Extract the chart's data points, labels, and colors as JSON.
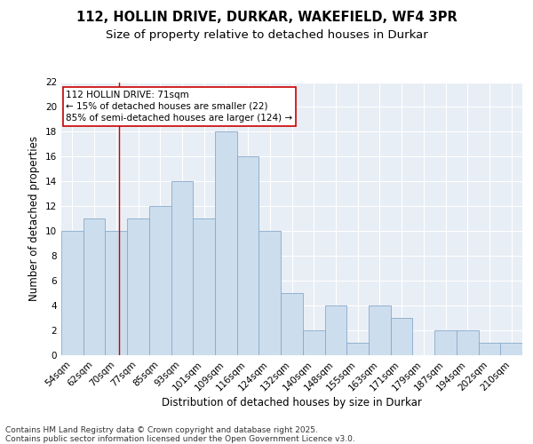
{
  "title_line1": "112, HOLLIN DRIVE, DURKAR, WAKEFIELD, WF4 3PR",
  "title_line2": "Size of property relative to detached houses in Durkar",
  "xlabel": "Distribution of detached houses by size in Durkar",
  "ylabel": "Number of detached properties",
  "categories": [
    "54sqm",
    "62sqm",
    "70sqm",
    "77sqm",
    "85sqm",
    "93sqm",
    "101sqm",
    "109sqm",
    "116sqm",
    "124sqm",
    "132sqm",
    "140sqm",
    "148sqm",
    "155sqm",
    "163sqm",
    "171sqm",
    "179sqm",
    "187sqm",
    "194sqm",
    "202sqm",
    "210sqm"
  ],
  "values": [
    10,
    11,
    10,
    11,
    12,
    14,
    11,
    18,
    16,
    10,
    5,
    2,
    4,
    1,
    4,
    3,
    0,
    2,
    2,
    1,
    1
  ],
  "bar_color": "#ccdded",
  "bar_edge_color": "#88aacc",
  "bar_width": 1.0,
  "ylim": [
    0,
    22
  ],
  "yticks": [
    0,
    2,
    4,
    6,
    8,
    10,
    12,
    14,
    16,
    18,
    20,
    22
  ],
  "vline_color": "#cc0000",
  "vline_index": 2.14,
  "annotation_text": "112 HOLLIN DRIVE: 71sqm\n← 15% of detached houses are smaller (22)\n85% of semi-detached houses are larger (124) →",
  "background_color": "#e8eef5",
  "grid_color": "#ffffff",
  "footer_text": "Contains HM Land Registry data © Crown copyright and database right 2025.\nContains public sector information licensed under the Open Government Licence v3.0.",
  "title_fontsize": 10.5,
  "subtitle_fontsize": 9.5,
  "axis_label_fontsize": 8.5,
  "tick_fontsize": 7.5,
  "annotation_fontsize": 7.5,
  "footer_fontsize": 6.5
}
